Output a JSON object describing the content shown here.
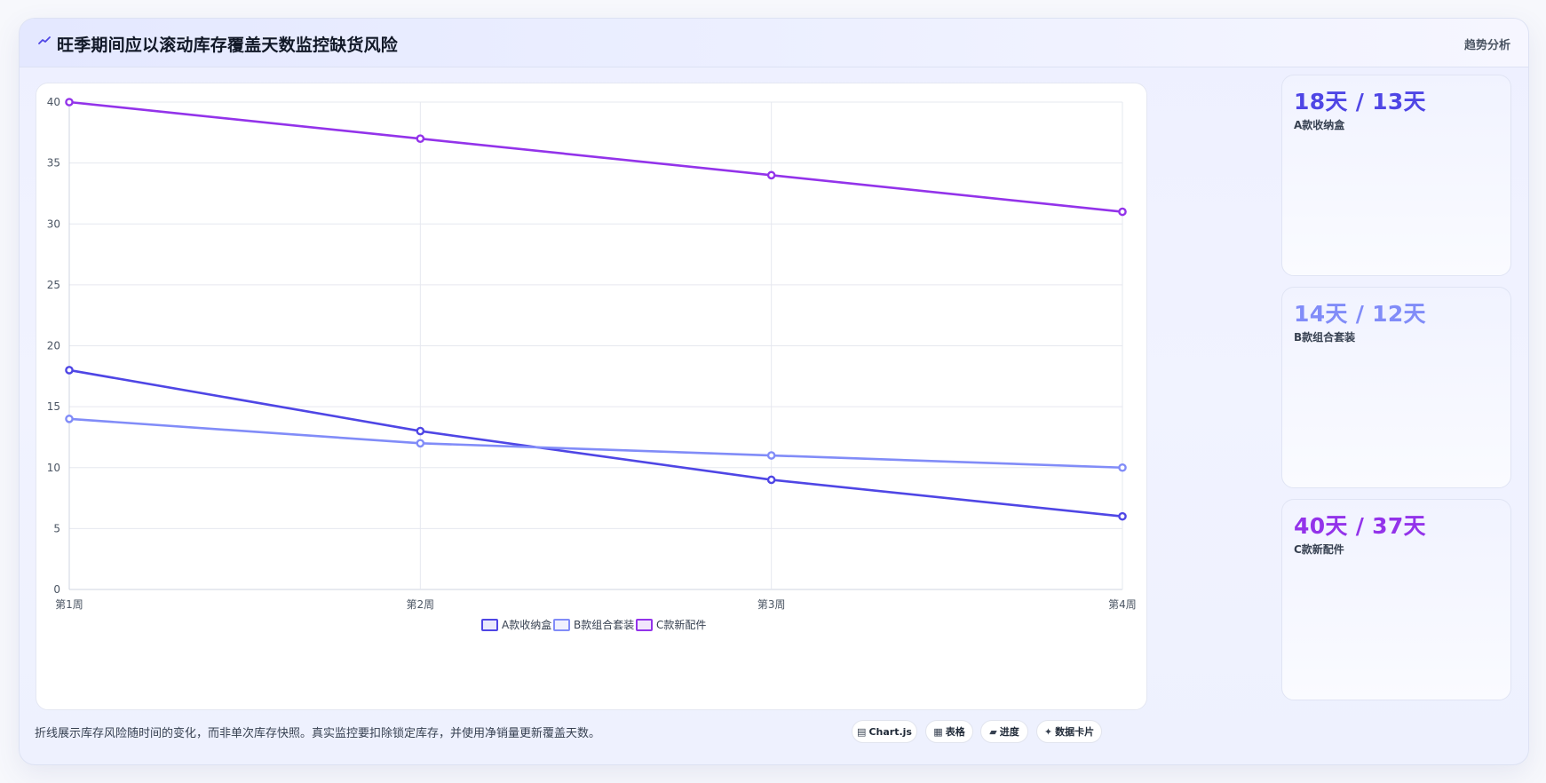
{
  "header": {
    "title": "旺季期间应以滚动库存覆盖天数监控缺货风险",
    "title_icon": "trend-icon",
    "link_label": "趋势分析"
  },
  "chart_data": {
    "type": "line",
    "categories": [
      "第1周",
      "第2周",
      "第3周",
      "第4周"
    ],
    "ylim": [
      0,
      40
    ],
    "y_ticks": [
      0,
      5,
      10,
      15,
      20,
      25,
      30,
      35,
      40
    ],
    "grid": true,
    "legend_position": "bottom",
    "series": [
      {
        "name": "A款收纳盒",
        "values": [
          18,
          13,
          9,
          6
        ],
        "color": "#4f46e5"
      },
      {
        "name": "B款组合套装",
        "values": [
          14,
          12,
          11,
          10
        ],
        "color": "#818cf8"
      },
      {
        "name": "C款新配件",
        "values": [
          40,
          37,
          34,
          31
        ],
        "color": "#9333ea"
      }
    ]
  },
  "stats": [
    {
      "value": "18天 / 13天",
      "label": "A款收纳盒",
      "color": "#4f46e5"
    },
    {
      "value": "14天 / 12天",
      "label": "B款组合套装",
      "color": "#818cf8"
    },
    {
      "value": "40天 / 37天",
      "label": "C款新配件",
      "color": "#9333ea"
    }
  ],
  "footnote": "折线展示库存风险随时间的变化，而非单次库存快照。真实监控要扣除锁定库存，并使用净销量更新覆盖天数。",
  "chips": [
    {
      "label": "Chart.js",
      "icon": "chart-icon"
    },
    {
      "label": "表格",
      "icon": "table-icon"
    },
    {
      "label": "进度",
      "icon": "progress-icon"
    },
    {
      "label": "数据卡片",
      "icon": "sparkle-icon"
    }
  ]
}
